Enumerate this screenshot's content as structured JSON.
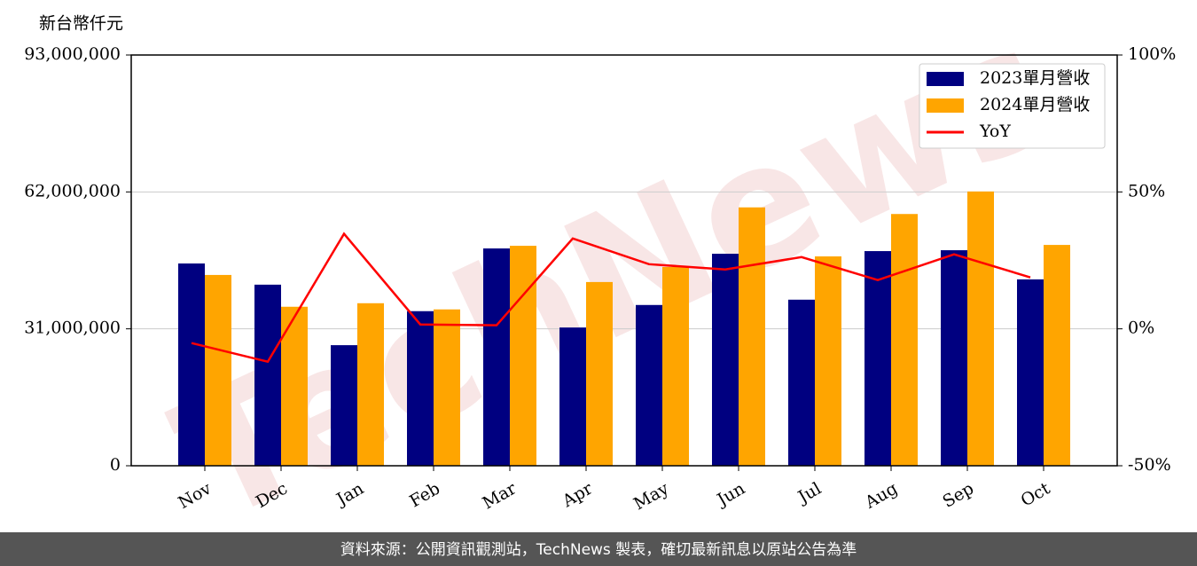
{
  "chart_data": {
    "type": "bar_line",
    "y_label": "新台幣仟元",
    "watermark": "TechNews",
    "footer": "資料來源：公開資訊觀測站，TechNews 製表，確切最新訊息以原站公告為準",
    "categories": [
      "Nov",
      "Dec",
      "Jan",
      "Feb",
      "Mar",
      "Apr",
      "May",
      "Jun",
      "Jul",
      "Aug",
      "Sep",
      "Oct"
    ],
    "series": [
      {
        "name": "2023單月營收",
        "type": "bar",
        "color": "#000080",
        "values": [
          45800000,
          41000000,
          27300000,
          35000000,
          49200000,
          31300000,
          36400000,
          48000000,
          37600000,
          48600000,
          48800000,
          42200000
        ]
      },
      {
        "name": "2024單月營收",
        "type": "bar",
        "color": "#ffa500",
        "values": [
          43200000,
          36000000,
          36800000,
          35400000,
          49800000,
          41600000,
          45000000,
          58500000,
          47400000,
          57000000,
          62100000,
          50000000
        ]
      },
      {
        "name": "YoY",
        "type": "line",
        "axis": "y2",
        "color": "#ff0000",
        "values": [
          -5.2,
          -12,
          34.7,
          1.6,
          1.3,
          33,
          23.6,
          21.7,
          26.2,
          17.8,
          27.2,
          18.8
        ]
      }
    ],
    "ylim": [
      0,
      93000000
    ],
    "yticks": [
      0,
      {
        "value": 31000000,
        "label": "31,000,000"
      },
      {
        "value": 62000000,
        "label": "62,000,000"
      },
      {
        "value": 93000000,
        "label": "93,000,000"
      }
    ],
    "y2lim": [
      -50,
      100
    ],
    "y2ticks": [
      {
        "value": -50,
        "label": "-50%"
      },
      {
        "value": 0,
        "label": "0%"
      },
      {
        "value": 50,
        "label": "50%"
      },
      {
        "value": 100,
        "label": "100%"
      }
    ],
    "grid": true,
    "legend": "upper right"
  }
}
